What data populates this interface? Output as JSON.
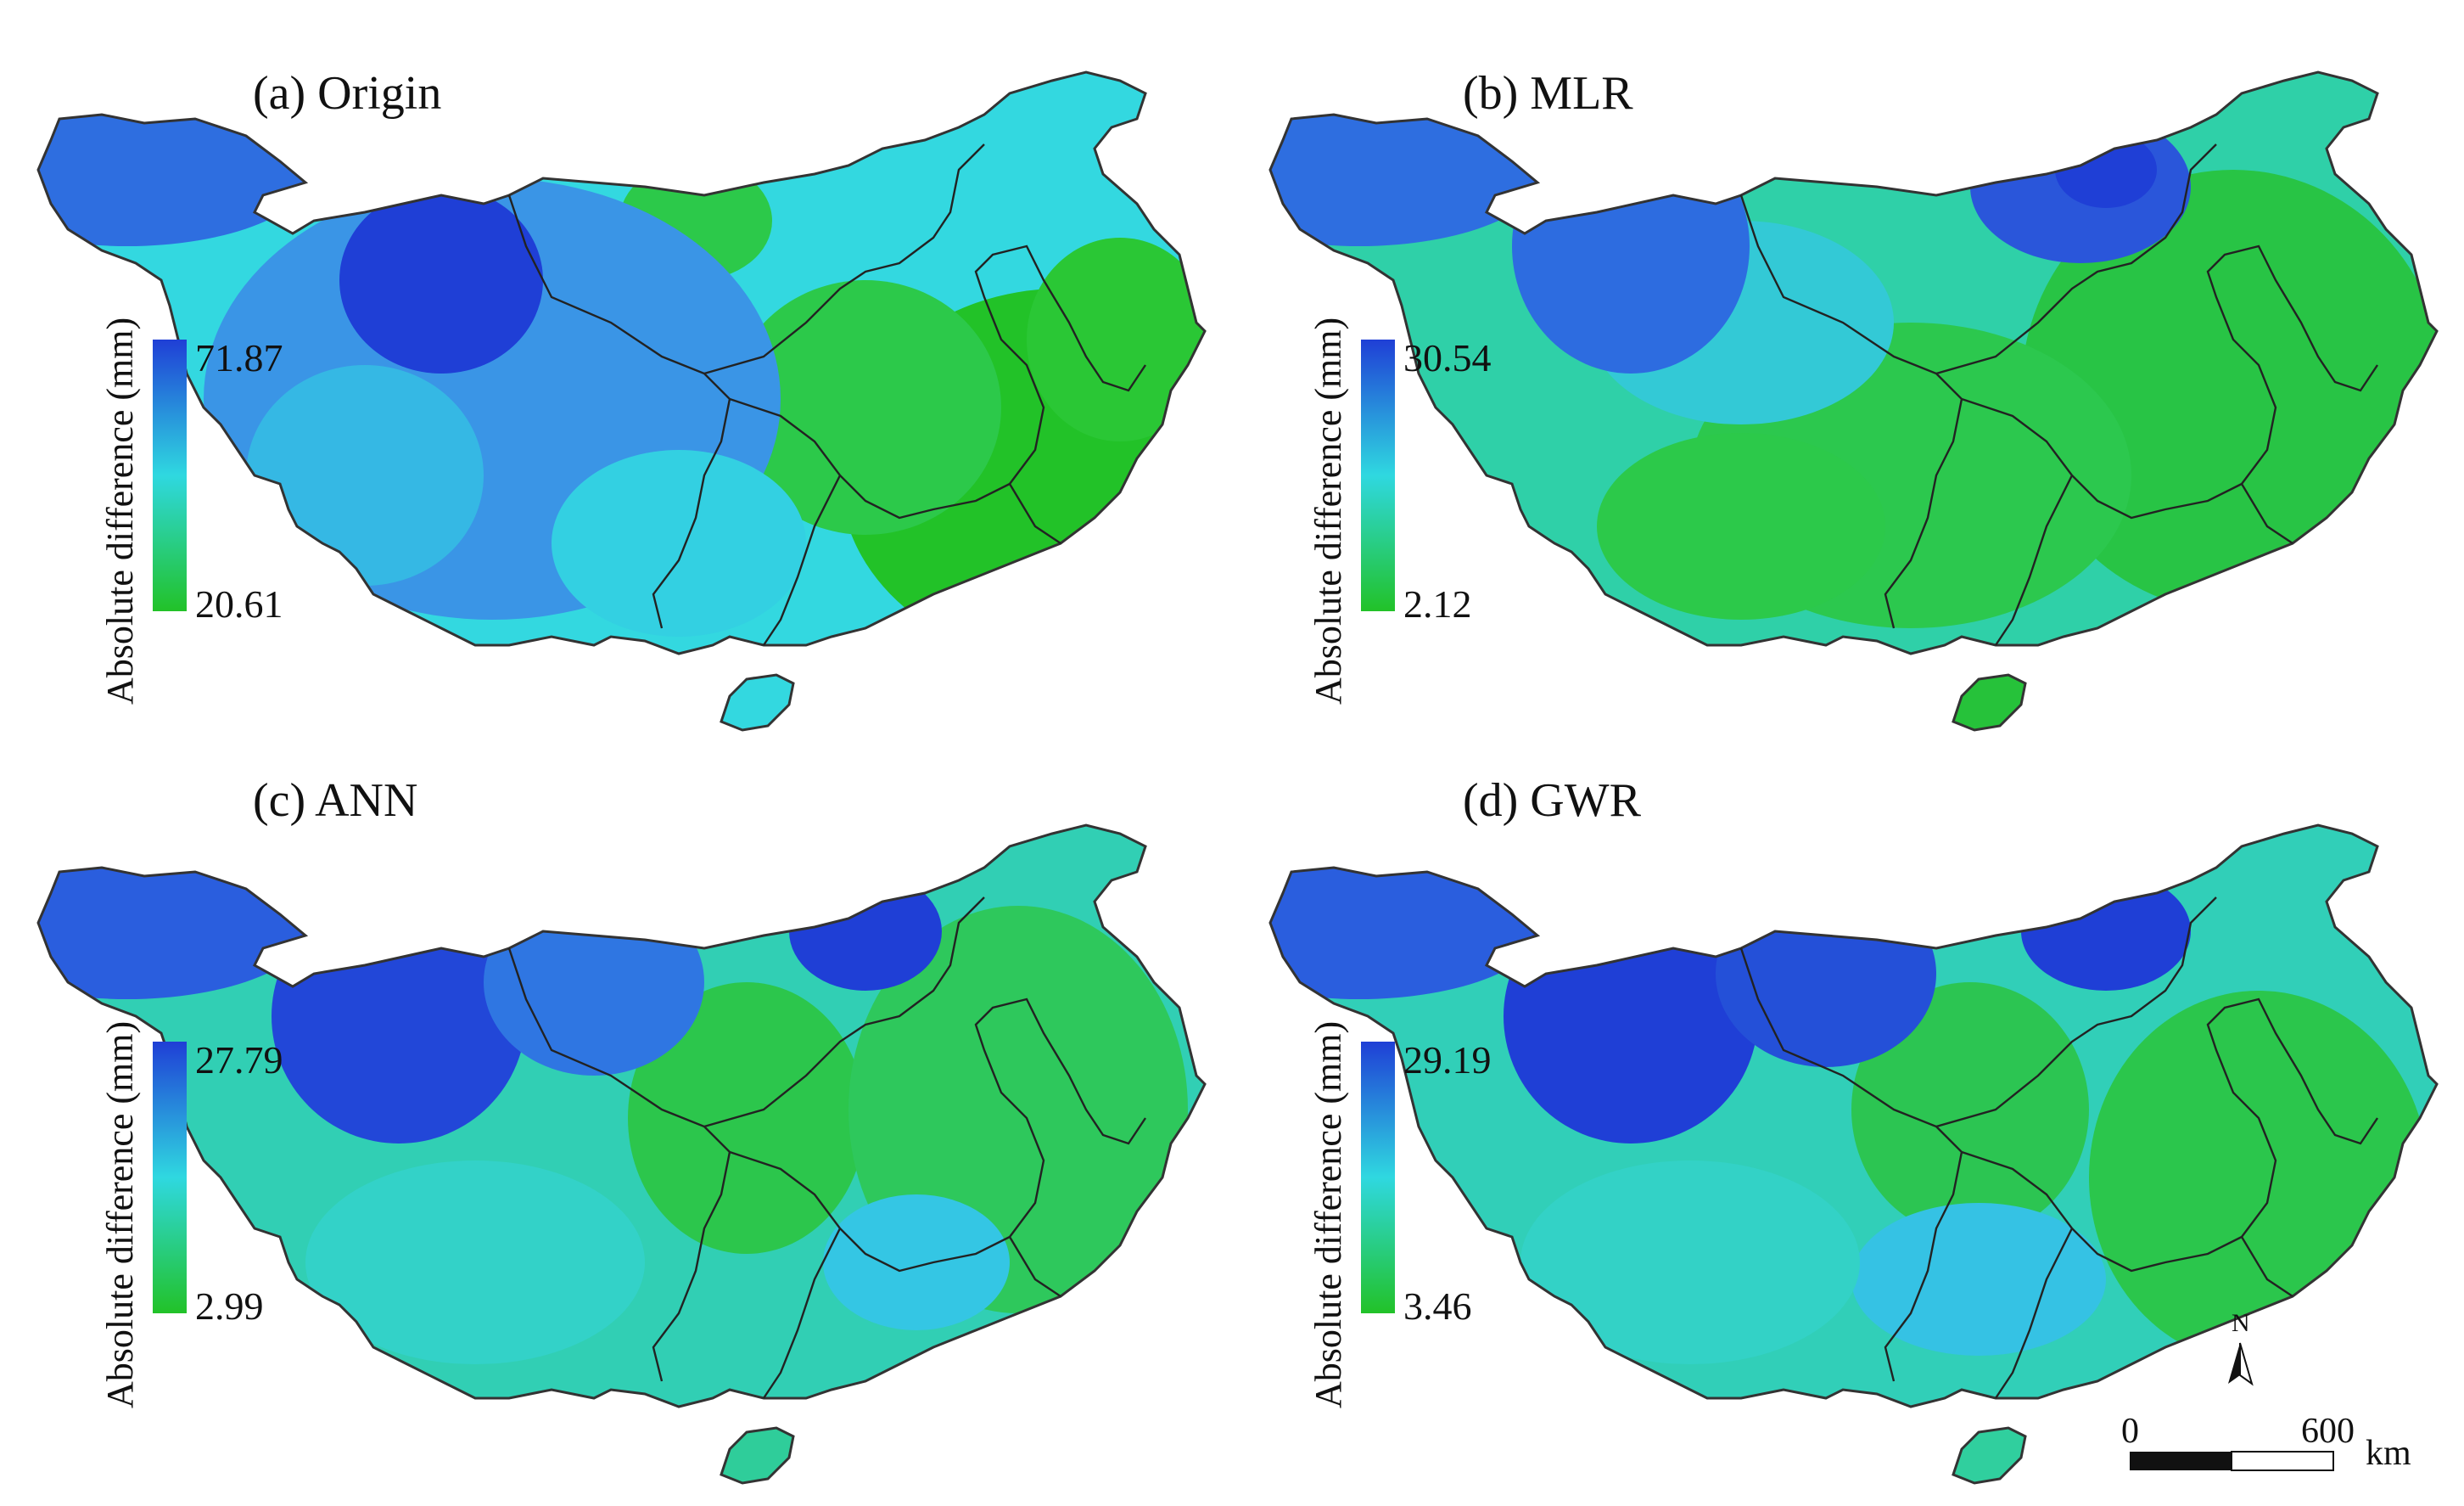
{
  "colors": {
    "high": "#1f3fd6",
    "mid": "#2fd8e0",
    "low": "#22c228",
    "boundary": "#222222",
    "outline": "#333333"
  },
  "panels": [
    {
      "title": "(a) Origin",
      "legend_label": "Absolute difference (mm)",
      "max": "71.87",
      "min": "20.61"
    },
    {
      "title": "(b) MLR",
      "legend_label": "Absolute difference (mm)",
      "max": "30.54",
      "min": "2.12"
    },
    {
      "title": "(c) ANN",
      "legend_label": "Absolute difference (mm)",
      "max": "27.79",
      "min": "2.99"
    },
    {
      "title": "(d) GWR",
      "legend_label": "Absolute difference (mm)",
      "max": "29.19",
      "min": "3.46"
    }
  ],
  "scale_bar": {
    "start": "0",
    "end": "600",
    "unit": "km"
  },
  "north_arrow": {
    "label": "N",
    "icon": "north-arrow-icon"
  }
}
